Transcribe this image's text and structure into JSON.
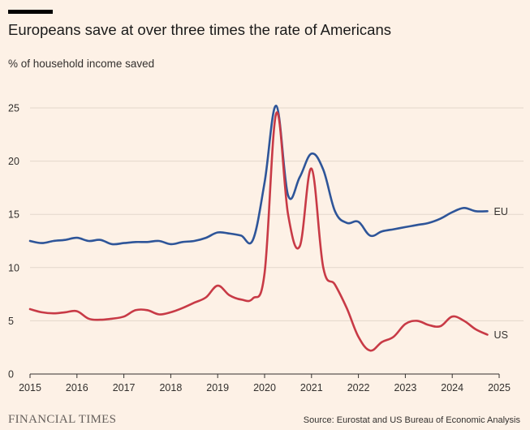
{
  "header": {
    "title": "Europeans save at over three times the rate of Americans",
    "subtitle": "% of household income saved"
  },
  "footer": {
    "logo": "FINANCIAL TIMES",
    "source": "Source: Eurostat and US Bureau of Economic Analysis"
  },
  "colors": {
    "background": "#FDF1E6",
    "eu": "#2E5599",
    "us": "#C83A46",
    "grid": "#E3D7CB",
    "axis": "#33302E"
  },
  "chart_data": {
    "type": "line",
    "title": "Europeans save at over three times the rate of Americans",
    "ylabel": "% of household income saved",
    "xlabel": "",
    "xlim": [
      2015,
      2025
    ],
    "ylim": [
      0,
      25
    ],
    "x_ticks": [
      2015,
      2016,
      2017,
      2018,
      2019,
      2020,
      2021,
      2022,
      2023,
      2024,
      2025
    ],
    "x_tick_labels": [
      "2015",
      "2016",
      "2017",
      "2018",
      "2019",
      "2020",
      "2021",
      "2022",
      "2023",
      "2024",
      "2025"
    ],
    "y_ticks": [
      0,
      5,
      10,
      15,
      20,
      25
    ],
    "y_tick_labels": [
      "0",
      "5",
      "10",
      "15",
      "20",
      "25"
    ],
    "grid": true,
    "series": [
      {
        "name": "EU",
        "label": "EU",
        "color": "#2E5599",
        "points": [
          [
            2015.0,
            12.5
          ],
          [
            2015.25,
            12.3
          ],
          [
            2015.5,
            12.5
          ],
          [
            2015.75,
            12.6
          ],
          [
            2016.0,
            12.8
          ],
          [
            2016.25,
            12.5
          ],
          [
            2016.5,
            12.6
          ],
          [
            2016.75,
            12.2
          ],
          [
            2017.0,
            12.3
          ],
          [
            2017.25,
            12.4
          ],
          [
            2017.5,
            12.4
          ],
          [
            2017.75,
            12.5
          ],
          [
            2018.0,
            12.2
          ],
          [
            2018.25,
            12.4
          ],
          [
            2018.5,
            12.5
          ],
          [
            2018.75,
            12.8
          ],
          [
            2019.0,
            13.3
          ],
          [
            2019.25,
            13.2
          ],
          [
            2019.5,
            13.0
          ],
          [
            2019.75,
            12.6
          ],
          [
            2020.0,
            18.0
          ],
          [
            2020.25,
            25.2
          ],
          [
            2020.5,
            16.8
          ],
          [
            2020.75,
            18.5
          ],
          [
            2021.0,
            20.7
          ],
          [
            2021.25,
            19.2
          ],
          [
            2021.5,
            15.3
          ],
          [
            2021.75,
            14.2
          ],
          [
            2022.0,
            14.3
          ],
          [
            2022.25,
            13.0
          ],
          [
            2022.5,
            13.4
          ],
          [
            2022.75,
            13.6
          ],
          [
            2023.0,
            13.8
          ],
          [
            2023.25,
            14.0
          ],
          [
            2023.5,
            14.2
          ],
          [
            2023.75,
            14.6
          ],
          [
            2024.0,
            15.2
          ],
          [
            2024.25,
            15.6
          ],
          [
            2024.5,
            15.3
          ],
          [
            2024.75,
            15.3
          ]
        ]
      },
      {
        "name": "US",
        "label": "US",
        "color": "#C83A46",
        "points": [
          [
            2015.0,
            6.1
          ],
          [
            2015.25,
            5.8
          ],
          [
            2015.5,
            5.7
          ],
          [
            2015.75,
            5.8
          ],
          [
            2016.0,
            5.9
          ],
          [
            2016.25,
            5.2
          ],
          [
            2016.5,
            5.1
          ],
          [
            2016.75,
            5.2
          ],
          [
            2017.0,
            5.4
          ],
          [
            2017.25,
            6.0
          ],
          [
            2017.5,
            6.0
          ],
          [
            2017.75,
            5.6
          ],
          [
            2018.0,
            5.8
          ],
          [
            2018.25,
            6.2
          ],
          [
            2018.5,
            6.7
          ],
          [
            2018.75,
            7.2
          ],
          [
            2019.0,
            8.3
          ],
          [
            2019.25,
            7.4
          ],
          [
            2019.5,
            7.0
          ],
          [
            2019.75,
            7.1
          ],
          [
            2020.0,
            9.5
          ],
          [
            2020.25,
            24.5
          ],
          [
            2020.5,
            15.0
          ],
          [
            2020.75,
            12.0
          ],
          [
            2021.0,
            19.3
          ],
          [
            2021.25,
            10.0
          ],
          [
            2021.5,
            8.4
          ],
          [
            2021.75,
            6.2
          ],
          [
            2022.0,
            3.5
          ],
          [
            2022.25,
            2.2
          ],
          [
            2022.5,
            3.0
          ],
          [
            2022.75,
            3.5
          ],
          [
            2023.0,
            4.7
          ],
          [
            2023.25,
            5.0
          ],
          [
            2023.5,
            4.6
          ],
          [
            2023.75,
            4.5
          ],
          [
            2024.0,
            5.4
          ],
          [
            2024.25,
            5.0
          ],
          [
            2024.5,
            4.2
          ],
          [
            2024.75,
            3.7
          ]
        ]
      }
    ]
  }
}
